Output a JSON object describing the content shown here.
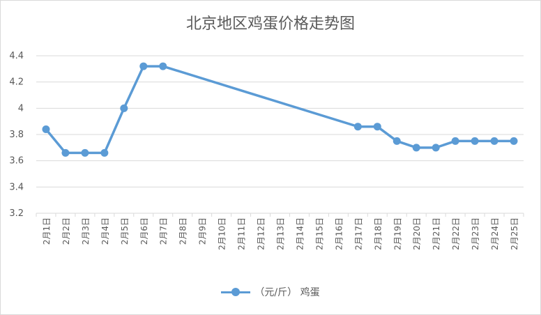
{
  "chart_data": {
    "type": "line",
    "title": "北京地区鸡蛋价格走势图",
    "categories": [
      "2月1日",
      "2月2日",
      "2月3日",
      "2月4日",
      "2月5日",
      "2月6日",
      "2月7日",
      "2月8日",
      "2月9日",
      "2月10日",
      "2月11日",
      "2月12日",
      "2月13日",
      "2月14日",
      "2月15日",
      "2月16日",
      "2月17日",
      "2月18日",
      "2月19日",
      "2月20日",
      "2月21日",
      "2月22日",
      "2月23日",
      "2月24日",
      "2月25日"
    ],
    "series": [
      {
        "name": "（元/斤） 鸡蛋",
        "values": [
          3.84,
          3.66,
          3.66,
          3.66,
          4.0,
          4.32,
          4.32,
          null,
          null,
          null,
          null,
          null,
          null,
          null,
          null,
          null,
          3.86,
          3.86,
          3.75,
          3.7,
          3.7,
          3.75,
          3.75,
          3.75,
          3.75
        ],
        "color": "#5b9bd5"
      }
    ],
    "ylim": [
      3.2,
      4.4
    ],
    "yticks": [
      "3.2",
      "3.4",
      "3.6",
      "3.8",
      "4",
      "4.2",
      "4.4"
    ],
    "grid": true,
    "legend": "bottom",
    "xlabel": "",
    "ylabel": ""
  }
}
